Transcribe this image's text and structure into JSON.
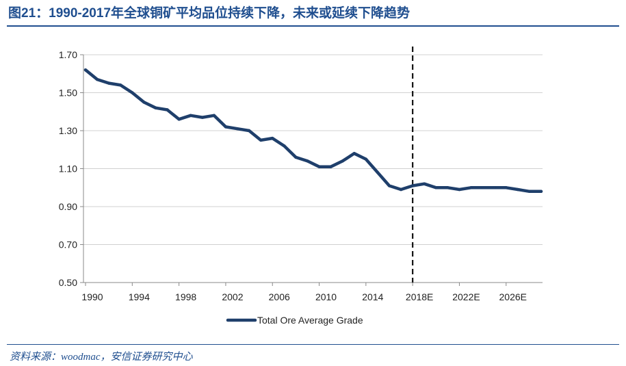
{
  "title": "图21：1990-2017年全球铜矿平均品位持续下降，未来或延续下降趋势",
  "source": "资料来源：woodmac，安信证券研究中心",
  "colors": {
    "series": "#1f3f6b",
    "title": "#1f4e8f",
    "grid": "#d0d0d0"
  },
  "chart_data": {
    "type": "line",
    "title": "",
    "xlabel": "",
    "ylabel": "",
    "ylim": [
      0.5,
      1.7
    ],
    "yticks": [
      "0.50",
      "0.70",
      "0.90",
      "1.10",
      "1.30",
      "1.50",
      "1.70"
    ],
    "xticks": [
      "1990",
      "1994",
      "1998",
      "2002",
      "2006",
      "2010",
      "2014",
      "2018E",
      "2022E",
      "2026E"
    ],
    "grid": true,
    "legend_position": "bottom",
    "forecast_marker_year": 2018,
    "series": [
      {
        "name": "Total Ore Average Grade",
        "x": [
          1990,
          1991,
          1992,
          1993,
          1994,
          1995,
          1996,
          1997,
          1998,
          1999,
          2000,
          2001,
          2002,
          2003,
          2004,
          2005,
          2006,
          2007,
          2008,
          2009,
          2010,
          2011,
          2012,
          2013,
          2014,
          2015,
          2016,
          2017,
          2018,
          2019,
          2020,
          2021,
          2022,
          2023,
          2024,
          2025,
          2026,
          2027,
          2028,
          2029
        ],
        "values": [
          1.62,
          1.57,
          1.55,
          1.54,
          1.5,
          1.45,
          1.42,
          1.41,
          1.36,
          1.38,
          1.37,
          1.38,
          1.32,
          1.31,
          1.3,
          1.25,
          1.26,
          1.22,
          1.16,
          1.14,
          1.11,
          1.11,
          1.14,
          1.18,
          1.15,
          1.08,
          1.01,
          0.99,
          1.01,
          1.02,
          1.0,
          1.0,
          0.99,
          1.0,
          1.0,
          1.0,
          1.0,
          0.99,
          0.98,
          0.98
        ]
      }
    ]
  }
}
